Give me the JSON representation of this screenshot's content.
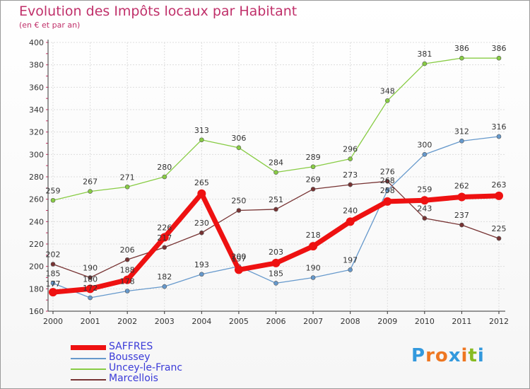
{
  "chart_data": {
    "type": "line",
    "title": "Evolution des Impôts locaux par Habitant",
    "subtitle": "(en € et par an)",
    "x": [
      "2000",
      "2001",
      "2002",
      "2003",
      "2004",
      "2005",
      "2006",
      "2007",
      "2008",
      "2009",
      "2010",
      "2011",
      "2012"
    ],
    "ylim": [
      160,
      400
    ],
    "yticks": [
      160,
      180,
      200,
      220,
      240,
      260,
      280,
      300,
      320,
      340,
      360,
      380,
      400
    ],
    "grid": true,
    "legend_position": "bottom-left",
    "series": [
      {
        "name": "SAFFRES",
        "color": "#ee1111",
        "values": [
          177,
          180,
          188,
          226,
          265,
          197,
          203,
          218,
          240,
          258,
          259,
          262,
          263
        ]
      },
      {
        "name": "Boussey",
        "color": "#6699cc",
        "values": [
          185,
          172,
          178,
          182,
          193,
          200,
          185,
          190,
          197,
          268,
          300,
          312,
          316
        ]
      },
      {
        "name": "Uncey-le-Franc",
        "color": "#88cc44",
        "values": [
          259,
          267,
          271,
          280,
          313,
          306,
          284,
          289,
          296,
          348,
          381,
          386,
          386
        ]
      },
      {
        "name": "Marcellois",
        "color": "#773333",
        "values": [
          202,
          190,
          206,
          217,
          230,
          250,
          251,
          269,
          273,
          276,
          243,
          237,
          225
        ]
      }
    ]
  },
  "branding": {
    "logo_text": "Proxiti"
  }
}
